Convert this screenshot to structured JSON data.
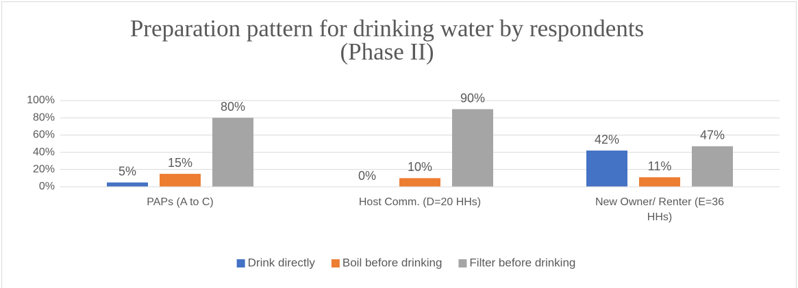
{
  "chart_data": {
    "type": "bar",
    "title": "Preparation pattern for drinking water by respondents",
    "subtitle": "(Phase II)",
    "categories": [
      "PAPs (A to C)",
      "Host Comm. (D=20 HHs)",
      "New Owner/ Renter (E=36 HHs)"
    ],
    "series": [
      {
        "name": "Drink directly",
        "color": "#4472c4",
        "values": [
          5,
          0,
          42
        ],
        "value_labels": [
          "5%",
          "0%",
          "42%"
        ]
      },
      {
        "name": "Boil before drinking",
        "color": "#ed7d31",
        "values": [
          15,
          10,
          11
        ],
        "value_labels": [
          "15%",
          "10%",
          "11%"
        ]
      },
      {
        "name": "Filter before drinking",
        "color": "#a5a5a5",
        "values": [
          80,
          90,
          47
        ],
        "value_labels": [
          "80%",
          "90%",
          "47%"
        ]
      }
    ],
    "ylim": [
      0,
      100
    ],
    "yticks": [
      {
        "value": 0,
        "label": "0%"
      },
      {
        "value": 20,
        "label": "20%"
      },
      {
        "value": 40,
        "label": "40%"
      },
      {
        "value": 60,
        "label": "60%"
      },
      {
        "value": 80,
        "label": "80%"
      },
      {
        "value": 100,
        "label": "100%"
      }
    ],
    "grid": true,
    "legend": "bottom"
  }
}
